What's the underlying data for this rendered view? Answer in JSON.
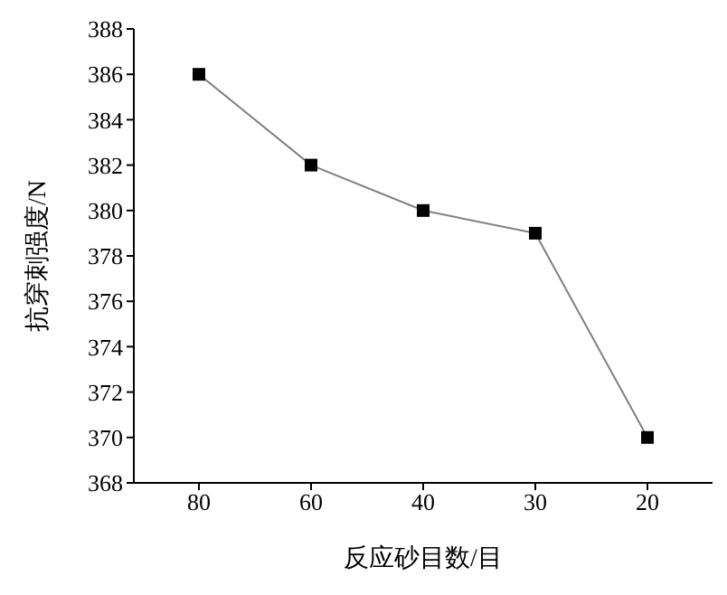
{
  "chart_data": {
    "type": "line",
    "xlabel": "反应砂目数/目",
    "ylabel": "抗穿刺强度/N",
    "categories": [
      "80",
      "60",
      "40",
      "30",
      "20"
    ],
    "series": [
      {
        "color": "#000000",
        "values": [
          386,
          382,
          380,
          379,
          370
        ]
      }
    ],
    "ylim": [
      368,
      388
    ],
    "yticks": [
      368,
      370,
      372,
      374,
      376,
      378,
      380,
      382,
      384,
      386,
      388
    ],
    "grid": false,
    "legend": false,
    "marker": "square",
    "line_style": "solid"
  }
}
